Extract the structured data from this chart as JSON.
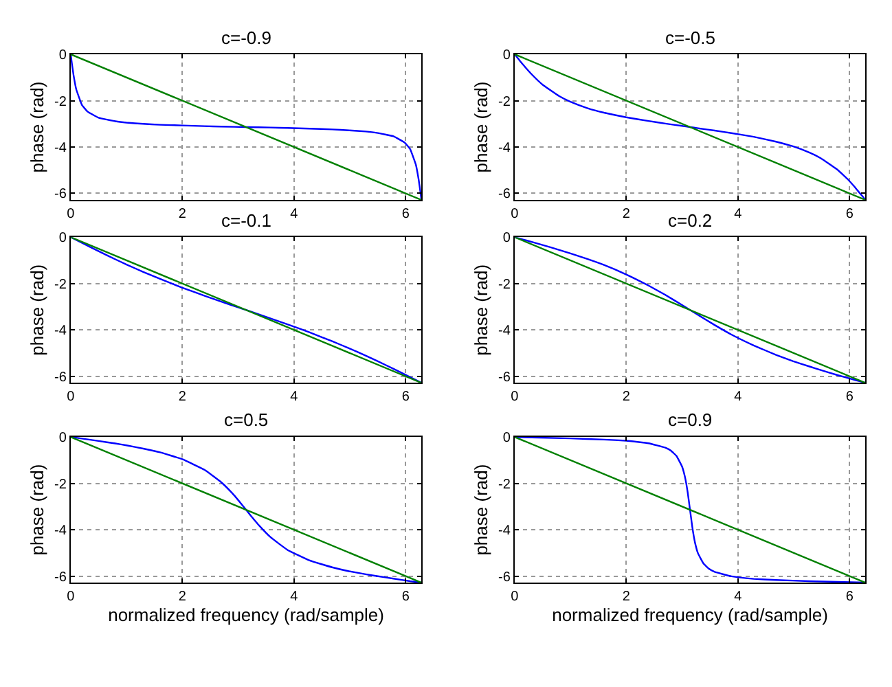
{
  "chart_data": [
    {
      "type": "line",
      "title": "c=-0.9",
      "ylabel": "phase (rad)",
      "xlim": [
        0,
        6.2832
      ],
      "ylim": [
        -6.2832,
        0
      ],
      "xticks": [
        0,
        2,
        4,
        6
      ],
      "yticks": [
        0,
        -2,
        -4,
        -6
      ],
      "grid": true,
      "series": [
        {
          "color": "#0000ff",
          "x": [
            0,
            0.02,
            0.05,
            0.1,
            0.2,
            0.3,
            0.5,
            0.8,
            1.0,
            1.3,
            1.6,
            2.0,
            2.4,
            2.7,
            3.1416,
            3.5832,
            3.8832,
            4.2832,
            4.6832,
            4.9832,
            5.2832,
            5.4832,
            5.7832,
            5.9832,
            6.0832,
            6.1832,
            6.2332,
            6.2632,
            6.2832
          ],
          "values": [
            0,
            -0.376,
            -0.887,
            -1.52,
            -2.18,
            -2.47,
            -2.74,
            -2.89,
            -2.95,
            -3.0,
            -3.04,
            -3.07,
            -3.1,
            -3.12,
            -3.14,
            -3.16,
            -3.18,
            -3.21,
            -3.24,
            -3.28,
            -3.33,
            -3.39,
            -3.54,
            -3.81,
            -4.1,
            -4.76,
            -5.4,
            -5.91,
            -6.28
          ]
        },
        {
          "color": "#008000",
          "x": [
            0,
            6.2832
          ],
          "values": [
            0,
            -6.2832
          ]
        }
      ]
    },
    {
      "type": "line",
      "title": "c=-0.5",
      "ylabel": "phase (rad)",
      "xlim": [
        0,
        6.2832
      ],
      "ylim": [
        -6.2832,
        0
      ],
      "xticks": [
        0,
        2,
        4,
        6
      ],
      "yticks": [
        0,
        -2,
        -4,
        -6
      ],
      "grid": true,
      "series": [
        {
          "color": "#0000ff",
          "x": [
            0,
            0.05,
            0.1,
            0.2,
            0.3,
            0.5,
            0.8,
            1.0,
            1.3,
            1.6,
            2.0,
            2.4,
            2.7,
            3.0,
            3.1416,
            3.2832,
            3.5832,
            3.8832,
            4.2832,
            4.6832,
            4.9832,
            5.2832,
            5.4832,
            5.7832,
            5.9832,
            6.0832,
            6.1832,
            6.2332,
            6.2832
          ],
          "values": [
            0,
            -0.15,
            -0.3,
            -0.585,
            -0.851,
            -1.31,
            -1.81,
            -2.05,
            -2.32,
            -2.52,
            -2.72,
            -2.88,
            -2.99,
            -3.09,
            -3.14,
            -3.19,
            -3.29,
            -3.4,
            -3.56,
            -3.77,
            -3.97,
            -4.24,
            -4.48,
            -4.98,
            -5.43,
            -5.7,
            -5.99,
            -6.13,
            -6.28
          ]
        },
        {
          "color": "#008000",
          "x": [
            0,
            6.2832
          ],
          "values": [
            0,
            -6.2832
          ]
        }
      ]
    },
    {
      "type": "line",
      "title": "c=-0.1",
      "ylabel": "phase (rad)",
      "xlim": [
        0,
        6.2832
      ],
      "ylim": [
        -6.2832,
        0
      ],
      "xticks": [
        0,
        2,
        4,
        6
      ],
      "yticks": [
        0,
        -2,
        -4,
        -6
      ],
      "grid": true,
      "series": [
        {
          "color": "#0000ff",
          "x": [
            0,
            0.2,
            0.5,
            0.8,
            1.0,
            1.3,
            1.6,
            2.0,
            2.4,
            2.7,
            3.0,
            3.1416,
            3.2832,
            3.5832,
            3.8832,
            4.2832,
            4.6832,
            4.9832,
            5.2832,
            5.4832,
            5.7832,
            6.0832,
            6.2832
          ],
          "values": [
            0,
            -0.244,
            -0.605,
            -0.955,
            -1.18,
            -1.5,
            -1.8,
            -2.18,
            -2.53,
            -2.78,
            -3.03,
            -3.14,
            -3.26,
            -3.51,
            -3.76,
            -4.11,
            -4.49,
            -4.79,
            -5.11,
            -5.33,
            -5.68,
            -6.04,
            -6.28
          ]
        },
        {
          "color": "#008000",
          "x": [
            0,
            6.2832
          ],
          "values": [
            0,
            -6.2832
          ]
        }
      ]
    },
    {
      "type": "line",
      "title": "c=0.2",
      "ylabel": "phase (rad)",
      "xlim": [
        0,
        6.2832
      ],
      "ylim": [
        -6.2832,
        0
      ],
      "xticks": [
        0,
        2,
        4,
        6
      ],
      "yticks": [
        0,
        -2,
        -4,
        -6
      ],
      "grid": true,
      "series": [
        {
          "color": "#0000ff",
          "x": [
            0,
            0.2,
            0.5,
            0.8,
            1.0,
            1.3,
            1.6,
            2.0,
            2.4,
            2.7,
            3.0,
            3.1416,
            3.2832,
            3.5832,
            3.8832,
            4.2832,
            4.6832,
            4.9832,
            5.2832,
            5.4832,
            5.7832,
            6.0832,
            6.2832
          ],
          "values": [
            0,
            -0.134,
            -0.337,
            -0.55,
            -0.7,
            -0.94,
            -1.2,
            -1.61,
            -2.09,
            -2.49,
            -2.93,
            -3.14,
            -3.35,
            -3.79,
            -4.2,
            -4.67,
            -5.08,
            -5.35,
            -5.58,
            -5.73,
            -5.95,
            -6.15,
            -6.28
          ]
        },
        {
          "color": "#008000",
          "x": [
            0,
            6.2832
          ],
          "values": [
            0,
            -6.2832
          ]
        }
      ]
    },
    {
      "type": "line",
      "title": "c=0.5",
      "xlabel": "normalized frequency (rad/sample)",
      "ylabel": "phase (rad)",
      "xlim": [
        0,
        6.2832
      ],
      "ylim": [
        -6.2832,
        0
      ],
      "xticks": [
        0,
        2,
        4,
        6
      ],
      "yticks": [
        0,
        -2,
        -4,
        -6
      ],
      "grid": true,
      "series": [
        {
          "color": "#0000ff",
          "x": [
            0,
            0.2,
            0.5,
            0.8,
            1.0,
            1.3,
            1.6,
            2.0,
            2.4,
            2.7,
            2.9,
            3.0,
            3.1416,
            3.2832,
            3.3832,
            3.5832,
            3.8832,
            4.2832,
            4.6832,
            4.9832,
            5.2832,
            5.4832,
            5.7832,
            6.0832,
            6.2832
          ],
          "values": [
            0,
            -0.067,
            -0.17,
            -0.28,
            -0.36,
            -0.5,
            -0.66,
            -0.96,
            -1.42,
            -1.96,
            -2.44,
            -2.72,
            -3.14,
            -3.56,
            -3.84,
            -4.33,
            -4.87,
            -5.33,
            -5.62,
            -5.79,
            -5.92,
            -6.0,
            -6.11,
            -6.22,
            -6.28
          ]
        },
        {
          "color": "#008000",
          "x": [
            0,
            6.2832
          ],
          "values": [
            0,
            -6.2832
          ]
        }
      ]
    },
    {
      "type": "line",
      "title": "c=0.9",
      "xlabel": "normalized frequency (rad/sample)",
      "ylabel": "phase (rad)",
      "xlim": [
        0,
        6.2832
      ],
      "ylim": [
        -6.2832,
        0
      ],
      "xticks": [
        0,
        2,
        4,
        6
      ],
      "yticks": [
        0,
        -2,
        -4,
        -6
      ],
      "grid": true,
      "series": [
        {
          "color": "#0000ff",
          "x": [
            0,
            1.0,
            1.6,
            2.0,
            2.4,
            2.7,
            2.8,
            2.9,
            3.0,
            3.05,
            3.1,
            3.1416,
            3.1832,
            3.2332,
            3.2832,
            3.3832,
            3.4832,
            3.5832,
            3.8832,
            4.2832,
            4.6832,
            5.2832,
            6.2832
          ],
          "values": [
            0,
            -0.06,
            -0.11,
            -0.16,
            -0.27,
            -0.46,
            -0.59,
            -0.82,
            -1.28,
            -1.71,
            -2.39,
            -3.14,
            -3.89,
            -4.58,
            -5.01,
            -5.46,
            -5.69,
            -5.82,
            -6.01,
            -6.12,
            -6.17,
            -6.22,
            -6.28
          ]
        },
        {
          "color": "#008000",
          "x": [
            0,
            6.2832
          ],
          "values": [
            0,
            -6.2832
          ]
        }
      ]
    }
  ]
}
